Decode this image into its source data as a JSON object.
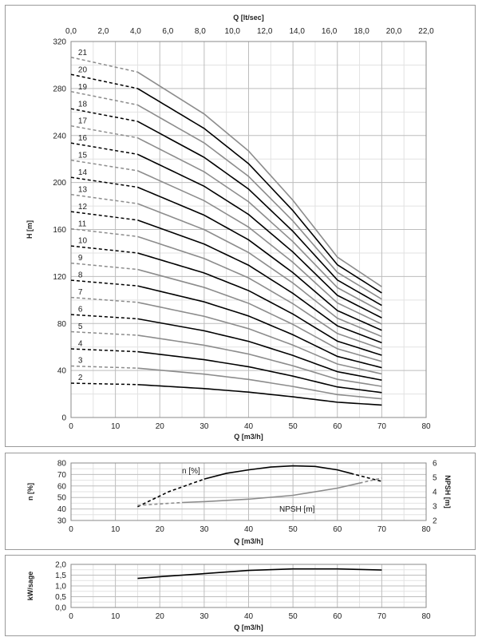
{
  "chart_data": [
    {
      "type": "line",
      "title": "",
      "xlabel": "Q [m3/h]",
      "ylabel": "H [m]",
      "x2label": "Q [lt/sec]",
      "xlim": [
        0,
        80
      ],
      "ylim": [
        0,
        320
      ],
      "x2lim": [
        0,
        22
      ],
      "xticks": [
        "0",
        "10",
        "20",
        "30",
        "40",
        "50",
        "60",
        "70",
        "80"
      ],
      "yticks": [
        "0",
        "40",
        "80",
        "120",
        "160",
        "200",
        "240",
        "280",
        "320"
      ],
      "x2ticks": [
        "0,0",
        "2,0",
        "4,0",
        "6,0",
        "8,0",
        "10,0",
        "12,0",
        "14,0",
        "16,0",
        "18,0",
        "20,0",
        "22,0"
      ],
      "grid": true,
      "curve_model": {
        "x": [
          0,
          15,
          30,
          40,
          50,
          60,
          70
        ],
        "per_stage_head": [
          14.6,
          14.0,
          12.3,
          10.8,
          8.8,
          6.5,
          5.3
        ],
        "dashed_range": [
          0,
          15
        ],
        "solid_range": [
          15,
          70
        ]
      },
      "series": [
        {
          "name": "2",
          "stages": 2,
          "color": "#000000"
        },
        {
          "name": "3",
          "stages": 3,
          "color": "#8c8c8c"
        },
        {
          "name": "4",
          "stages": 4,
          "color": "#000000"
        },
        {
          "name": "5",
          "stages": 5,
          "color": "#8c8c8c"
        },
        {
          "name": "6",
          "stages": 6,
          "color": "#000000"
        },
        {
          "name": "7",
          "stages": 7,
          "color": "#8c8c8c"
        },
        {
          "name": "8",
          "stages": 8,
          "color": "#000000"
        },
        {
          "name": "9",
          "stages": 9,
          "color": "#8c8c8c"
        },
        {
          "name": "10",
          "stages": 10,
          "color": "#000000"
        },
        {
          "name": "11",
          "stages": 11,
          "color": "#8c8c8c"
        },
        {
          "name": "12",
          "stages": 12,
          "color": "#000000"
        },
        {
          "name": "13",
          "stages": 13,
          "color": "#8c8c8c"
        },
        {
          "name": "14",
          "stages": 14,
          "color": "#000000"
        },
        {
          "name": "15",
          "stages": 15,
          "color": "#8c8c8c"
        },
        {
          "name": "16",
          "stages": 16,
          "color": "#000000"
        },
        {
          "name": "17",
          "stages": 17,
          "color": "#8c8c8c"
        },
        {
          "name": "18",
          "stages": 18,
          "color": "#000000"
        },
        {
          "name": "19",
          "stages": 19,
          "color": "#8c8c8c"
        },
        {
          "name": "20",
          "stages": 20,
          "color": "#000000"
        },
        {
          "name": "21",
          "stages": 21,
          "color": "#8c8c8c"
        }
      ]
    },
    {
      "type": "line",
      "title": "",
      "xlabel": "Q [m3/h]",
      "ylabel": "n [%]",
      "y2label": "NPSH [m]",
      "xlim": [
        0,
        80
      ],
      "ylim": [
        30,
        80
      ],
      "y2lim": [
        2,
        6
      ],
      "xticks": [
        "0",
        "10",
        "20",
        "30",
        "40",
        "50",
        "60",
        "70",
        "80"
      ],
      "yticks": [
        "30",
        "40",
        "50",
        "60",
        "70",
        "80"
      ],
      "y2ticks": [
        "2",
        "3",
        "4",
        "5",
        "6"
      ],
      "grid": true,
      "series": [
        {
          "name": "n [%]",
          "axis": "left",
          "color": "#000000",
          "segments": [
            {
              "style": "dashed",
              "x": [
                15,
                22,
                30
              ],
              "y": [
                42,
                55,
                66
              ]
            },
            {
              "style": "solid",
              "x": [
                30,
                35,
                40,
                45,
                50,
                55,
                60,
                63
              ],
              "y": [
                66,
                71,
                74,
                76.5,
                77.5,
                77,
                74,
                71
              ]
            },
            {
              "style": "dashed",
              "x": [
                63,
                67,
                70
              ],
              "y": [
                71,
                67,
                64
              ]
            }
          ]
        },
        {
          "name": "NPSH [m]",
          "axis": "right",
          "color": "#8c8c8c",
          "segments": [
            {
              "style": "dashed",
              "x": [
                15,
                25
              ],
              "y": [
                3.05,
                3.25
              ]
            },
            {
              "style": "solid",
              "x": [
                25,
                30,
                40,
                50,
                60,
                65
              ],
              "y": [
                3.25,
                3.31,
                3.48,
                3.75,
                4.25,
                4.6
              ]
            },
            {
              "style": "dashed",
              "x": [
                65,
                70
              ],
              "y": [
                4.6,
                4.95
              ]
            }
          ]
        }
      ]
    },
    {
      "type": "line",
      "title": "",
      "xlabel": "Q [m3/h]",
      "ylabel": "kW/sage",
      "xlim": [
        0,
        80
      ],
      "ylim": [
        0,
        2
      ],
      "xticks": [
        "0",
        "10",
        "20",
        "30",
        "40",
        "50",
        "60",
        "70",
        "80"
      ],
      "yticks": [
        "0,0",
        "0,5",
        "1,0",
        "1,5",
        "2,0"
      ],
      "yticks_full": [
        "0,0",
        "0,3",
        "0,5",
        "0,8",
        "1,0",
        "1,3",
        "1,5",
        "1,8",
        "2,0"
      ],
      "grid": true,
      "series": [
        {
          "name": "",
          "color": "#000000",
          "x": [
            15,
            20,
            30,
            40,
            50,
            60,
            70
          ],
          "y": [
            1.35,
            1.43,
            1.57,
            1.72,
            1.79,
            1.79,
            1.74
          ]
        }
      ]
    }
  ]
}
